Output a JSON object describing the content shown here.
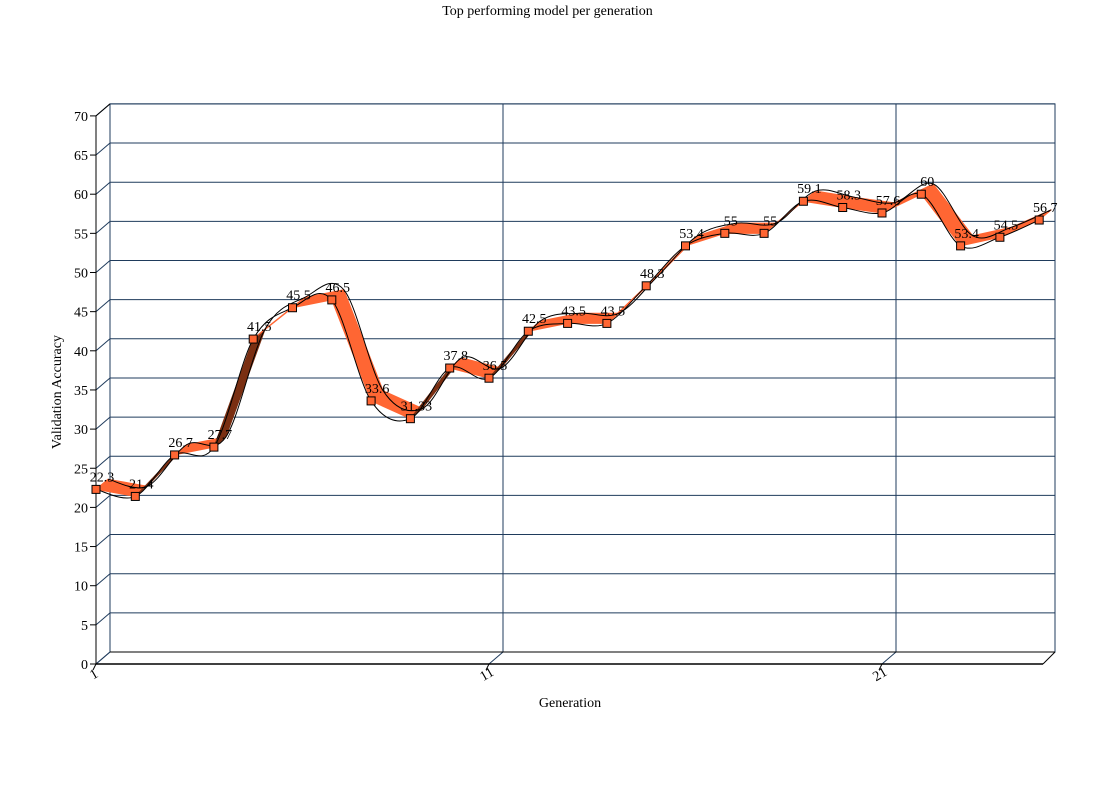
{
  "chart_data": {
    "type": "line",
    "title": "Top performing model per generation",
    "xlabel": "Generation",
    "ylabel": "Validation Accuracy",
    "x": [
      1,
      2,
      3,
      4,
      5,
      6,
      7,
      8,
      9,
      10,
      11,
      12,
      13,
      14,
      15,
      16,
      17,
      18,
      19,
      20,
      21,
      22,
      23,
      24,
      25
    ],
    "xticks": [
      "1",
      "11",
      "21"
    ],
    "ylim": [
      0,
      70
    ],
    "yticks": [
      0,
      5,
      10,
      15,
      20,
      25,
      30,
      35,
      40,
      45,
      50,
      55,
      60,
      65,
      70
    ],
    "grid": true,
    "series": [
      {
        "values": [
          22.3,
          21.4,
          26.7,
          27.7,
          41.5,
          45.5,
          46.5,
          33.6,
          31.33,
          37.8,
          36.5,
          42.5,
          43.5,
          43.5,
          48.3,
          53.4,
          55,
          55,
          59.1,
          58.3,
          57.6,
          60,
          53.4,
          54.5,
          56.7
        ],
        "labels": [
          "22.3",
          "21.4",
          "26.7",
          "27.7",
          "41.5",
          "45.5",
          "46.5",
          "33.6",
          "31.33",
          "37.8",
          "36.5",
          "42.5",
          "43.5",
          "43.5",
          "48.3",
          "53.4",
          "55",
          "55",
          "59.1",
          "58.3",
          "57.6",
          "60",
          "53.4",
          "54.5",
          "56.7"
        ]
      }
    ],
    "colors": {
      "ribbon": "#ff6633",
      "ribbon_dark": "#7a2f12",
      "marker": "#ff6633",
      "grid": "#1f3b5c",
      "axis": "#000000"
    }
  }
}
